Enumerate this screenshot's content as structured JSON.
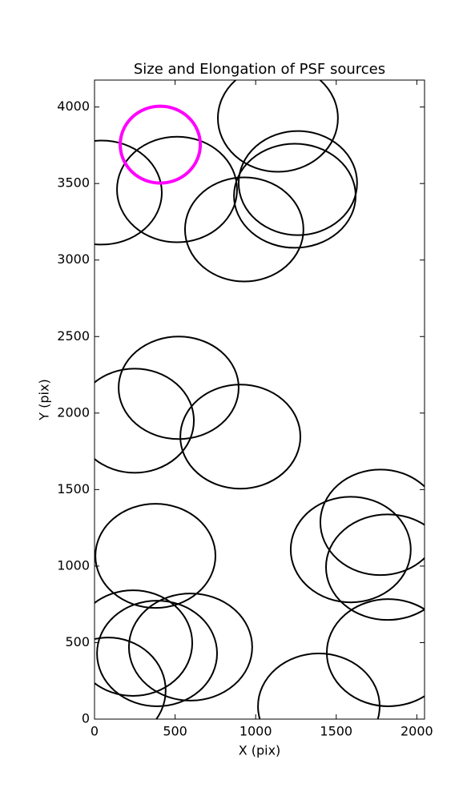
{
  "chart_data": {
    "type": "ellipse",
    "title": "Size and Elongation of PSF sources",
    "xlabel": "X (pix)",
    "ylabel": "Y (pix)",
    "xlim": [
      0,
      2048
    ],
    "ylim": [
      0,
      4176
    ],
    "xticks": [
      0,
      500,
      1000,
      1500,
      2000
    ],
    "yticks": [
      0,
      500,
      1000,
      1500,
      2000,
      2500,
      3000,
      3500,
      4000
    ],
    "series": [
      {
        "color": "#000000",
        "line_width": 2,
        "x": [
          45,
          512,
          1138,
          1262,
          1243,
          929,
          522,
          249,
          905,
          378,
          1774,
          1590,
          1819,
          239,
          388,
          596,
          84,
          1392,
          1824
        ],
        "y": [
          3441,
          3461,
          3927,
          3503,
          3420,
          3200,
          2165,
          1950,
          1846,
          1067,
          1286,
          1108,
          993,
          497,
          429,
          471,
          188,
          84,
          434
        ],
        "width": [
          745,
          745,
          745,
          735,
          755,
          735,
          745,
          735,
          745,
          745,
          745,
          745,
          765,
          735,
          745,
          765,
          715,
          755,
          765
        ],
        "height": [
          680,
          690,
          700,
          680,
          680,
          680,
          670,
          680,
          680,
          680,
          690,
          690,
          690,
          690,
          690,
          700,
          690,
          690,
          700
        ]
      },
      {
        "color": "#ff00ff",
        "line_width": 4,
        "x": [
          408
        ],
        "y": [
          3754
        ],
        "width": [
          497
        ],
        "height": [
          502
        ]
      }
    ]
  }
}
